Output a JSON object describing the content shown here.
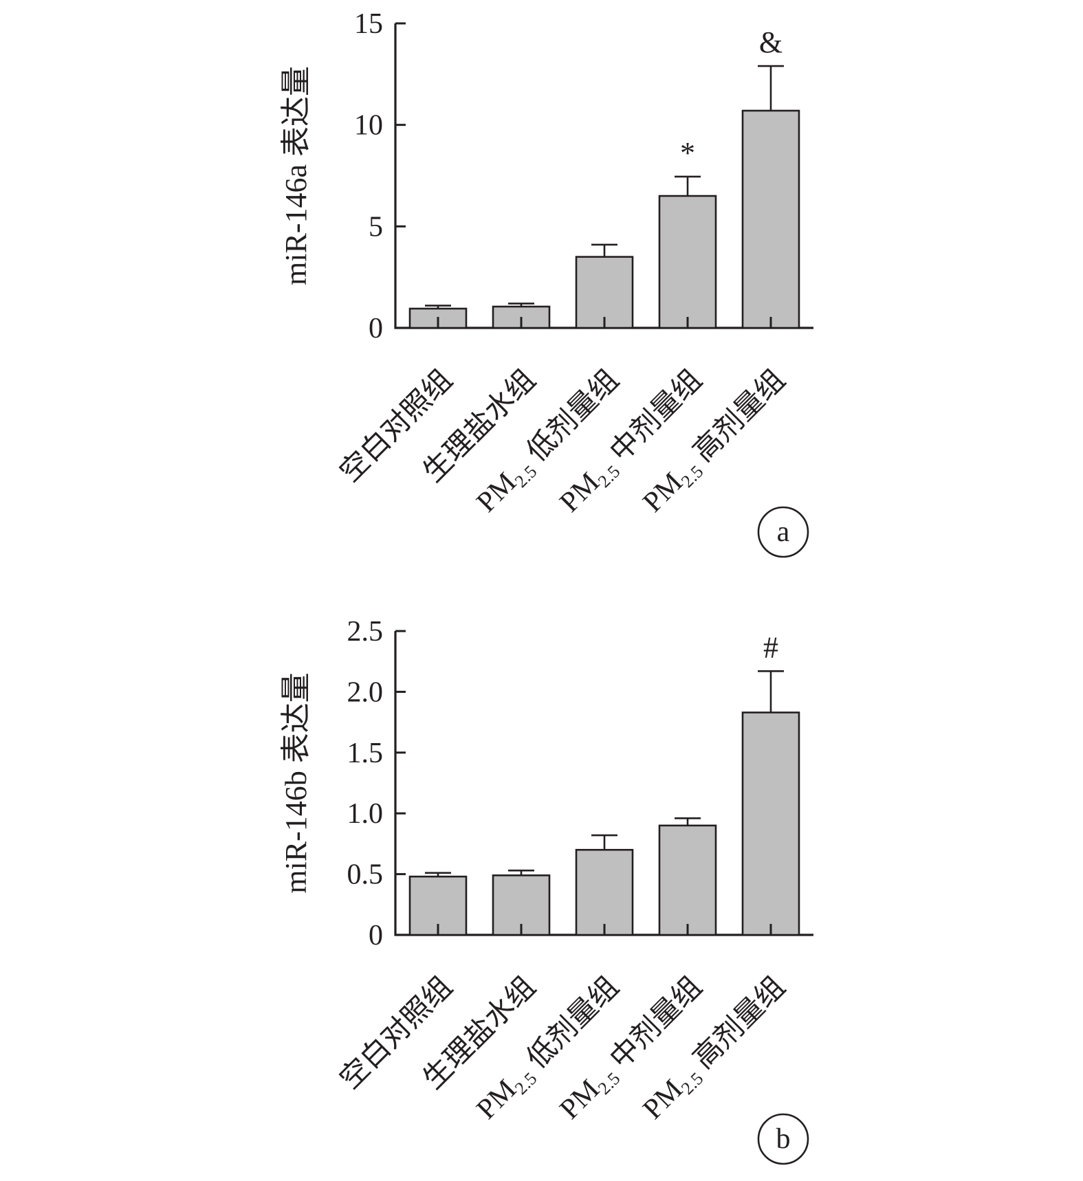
{
  "figure": {
    "colors": {
      "bar_fill": "#bfbfbf",
      "ink": "#231f20",
      "background": "#ffffff"
    }
  },
  "chart_data": [
    {
      "type": "bar",
      "panel_label": "a",
      "ylabel": "miR-146a 表达量",
      "ylim": [
        0,
        15
      ],
      "yticks": [
        0,
        5,
        10,
        15
      ],
      "ytick_labels": [
        "0",
        "5",
        "10",
        "15"
      ],
      "categories": [
        {
          "main": "空白对照组"
        },
        {
          "main": "生理盐水组"
        },
        {
          "prefix": "PM",
          "sub": "2.5",
          "main": " 低剂量组"
        },
        {
          "prefix": "PM",
          "sub": "2.5",
          "main": " 中剂量组"
        },
        {
          "prefix": "PM",
          "sub": "2.5",
          "main": " 高剂量组"
        }
      ],
      "values": [
        0.95,
        1.05,
        3.5,
        6.5,
        10.7
      ],
      "errors": [
        0.15,
        0.15,
        0.6,
        0.95,
        2.2
      ],
      "annotations": [
        "",
        "",
        "",
        "*",
        "&"
      ],
      "grid": false,
      "legend": "none"
    },
    {
      "type": "bar",
      "panel_label": "b",
      "ylabel": "miR-146b 表达量",
      "ylim": [
        0,
        2.5
      ],
      "yticks": [
        0,
        0.5,
        1.0,
        1.5,
        2.0,
        2.5
      ],
      "ytick_labels": [
        "0",
        "0.5",
        "1.0",
        "1.5",
        "2.0",
        "2.5"
      ],
      "categories": [
        {
          "main": "空白对照组"
        },
        {
          "main": "生理盐水组"
        },
        {
          "prefix": "PM",
          "sub": "2.5",
          "main": " 低剂量组"
        },
        {
          "prefix": "PM",
          "sub": "2.5",
          "main": " 中剂量组"
        },
        {
          "prefix": "PM",
          "sub": "2.5",
          "main": " 高剂量组"
        }
      ],
      "values": [
        0.48,
        0.49,
        0.7,
        0.9,
        1.83
      ],
      "errors": [
        0.03,
        0.04,
        0.12,
        0.06,
        0.34
      ],
      "annotations": [
        "",
        "",
        "",
        "",
        "#"
      ],
      "grid": false,
      "legend": "none"
    }
  ]
}
